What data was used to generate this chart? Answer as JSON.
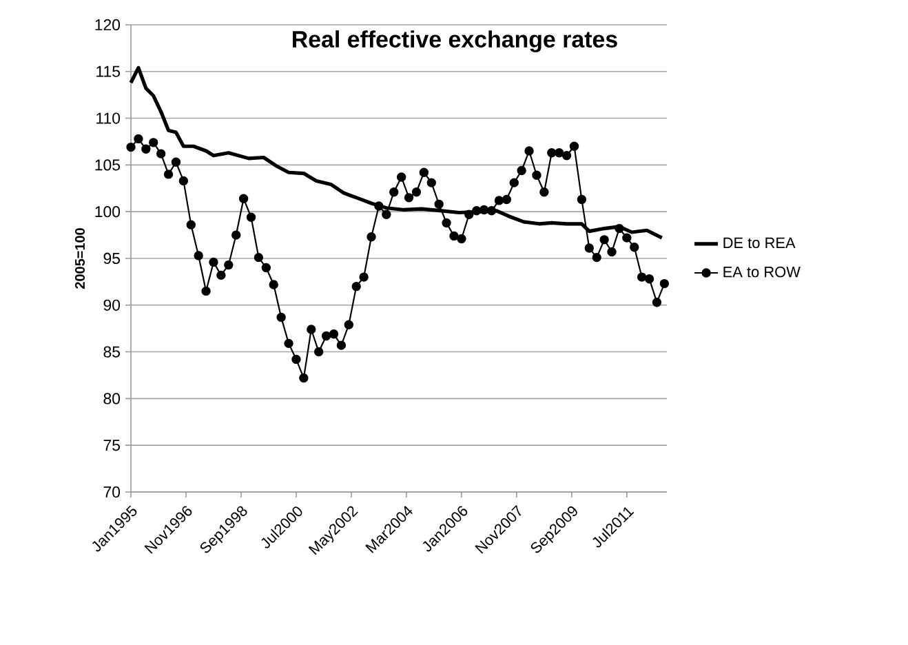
{
  "chart_data": {
    "type": "line",
    "title": "Real effective exchange rates",
    "ylabel": "2005=100",
    "xlim": [
      "1995-01",
      "2012-11"
    ],
    "ylim": [
      70,
      120
    ],
    "yticks": [
      70,
      75,
      80,
      85,
      90,
      95,
      100,
      105,
      110,
      115,
      120
    ],
    "xticks": [
      {
        "value": "1995-01",
        "label": "Jan1995"
      },
      {
        "value": "1996-11",
        "label": "Nov1996"
      },
      {
        "value": "1998-09",
        "label": "Sep1998"
      },
      {
        "value": "2000-07",
        "label": "Jul2000"
      },
      {
        "value": "2002-05",
        "label": "May2002"
      },
      {
        "value": "2004-03",
        "label": "Mar2004"
      },
      {
        "value": "2006-01",
        "label": "Jan2006"
      },
      {
        "value": "2007-11",
        "label": "Nov2007"
      },
      {
        "value": "2009-09",
        "label": "Sep2009"
      },
      {
        "value": "2011-07",
        "label": "Jul2011"
      }
    ],
    "grid": "y",
    "legend": "right",
    "series": [
      {
        "name": "DE to REA",
        "color": "#000000",
        "marker": "none",
        "x": [
          "1995-01",
          "1995-04",
          "1995-07",
          "1995-10",
          "1996-01",
          "1996-04",
          "1996-07",
          "1996-10",
          "1997-02",
          "1997-07",
          "1997-10",
          "1998-04",
          "1998-12",
          "1999-06",
          "1999-11",
          "2000-04",
          "2000-10",
          "2001-03",
          "2001-09",
          "2002-02",
          "2002-08",
          "2003-01",
          "2003-07",
          "2004-02",
          "2004-09",
          "2005-05",
          "2005-12",
          "2006-09",
          "2007-03",
          "2007-08",
          "2008-02",
          "2008-08",
          "2009-01",
          "2009-07",
          "2010-01",
          "2010-04",
          "2010-10",
          "2011-04",
          "2011-09",
          "2012-03",
          "2012-09"
        ],
        "values": [
          113.8,
          115.4,
          113.2,
          112.4,
          110.7,
          108.7,
          108.5,
          107.0,
          107.0,
          106.5,
          106.0,
          106.3,
          105.7,
          105.8,
          104.9,
          104.2,
          104.1,
          103.3,
          102.9,
          102.0,
          101.4,
          100.9,
          100.4,
          100.2,
          100.3,
          100.1,
          99.9,
          100.0,
          100.1,
          99.5,
          98.9,
          98.7,
          98.8,
          98.7,
          98.7,
          97.9,
          98.2,
          98.4,
          97.8,
          98.0,
          97.2
        ]
      },
      {
        "name": "EA to ROW",
        "color": "#000000",
        "marker": "circle",
        "x": [
          "1995-01",
          "1995-04",
          "1995-07",
          "1995-10",
          "1996-01",
          "1996-04",
          "1996-07",
          "1996-10",
          "1997-01",
          "1997-04",
          "1997-07",
          "1997-10",
          "1998-01",
          "1998-04",
          "1998-07",
          "1998-10",
          "1999-01",
          "1999-04",
          "1999-07",
          "1999-10",
          "2000-01",
          "2000-04",
          "2000-07",
          "2000-10",
          "2001-01",
          "2001-04",
          "2001-07",
          "2001-10",
          "2002-01",
          "2002-04",
          "2002-07",
          "2002-10",
          "2003-01",
          "2003-04",
          "2003-07",
          "2003-10",
          "2004-01",
          "2004-04",
          "2004-07",
          "2004-10",
          "2005-01",
          "2005-04",
          "2005-07",
          "2005-10",
          "2006-01",
          "2006-04",
          "2006-07",
          "2006-10",
          "2007-01",
          "2007-04",
          "2007-07",
          "2007-10",
          "2008-01",
          "2008-04",
          "2008-07",
          "2008-10",
          "2009-01",
          "2009-04",
          "2009-07",
          "2009-10",
          "2010-01",
          "2010-04",
          "2010-07",
          "2010-10",
          "2011-01",
          "2011-04",
          "2011-07",
          "2011-10",
          "2012-01",
          "2012-04",
          "2012-07",
          "2012-10"
        ],
        "values": [
          106.9,
          107.8,
          106.7,
          107.4,
          106.2,
          104.0,
          105.3,
          103.3,
          98.6,
          95.3,
          91.5,
          94.6,
          93.2,
          94.3,
          97.5,
          101.4,
          99.4,
          95.1,
          94.0,
          92.2,
          88.7,
          85.9,
          84.2,
          82.2,
          87.4,
          85.0,
          86.7,
          86.9,
          85.7,
          87.9,
          92.0,
          93.0,
          97.3,
          100.6,
          99.7,
          102.1,
          103.7,
          101.5,
          102.1,
          104.2,
          103.1,
          100.8,
          98.8,
          97.4,
          97.1,
          99.7,
          100.1,
          100.2,
          100.1,
          101.2,
          101.3,
          103.1,
          104.4,
          106.5,
          103.9,
          102.1,
          106.3,
          106.3,
          106.0,
          107.0,
          101.3,
          96.1,
          95.1,
          97.0,
          95.7,
          98.2,
          97.2,
          96.2,
          93.0,
          92.8,
          90.3,
          92.3
        ]
      }
    ]
  }
}
